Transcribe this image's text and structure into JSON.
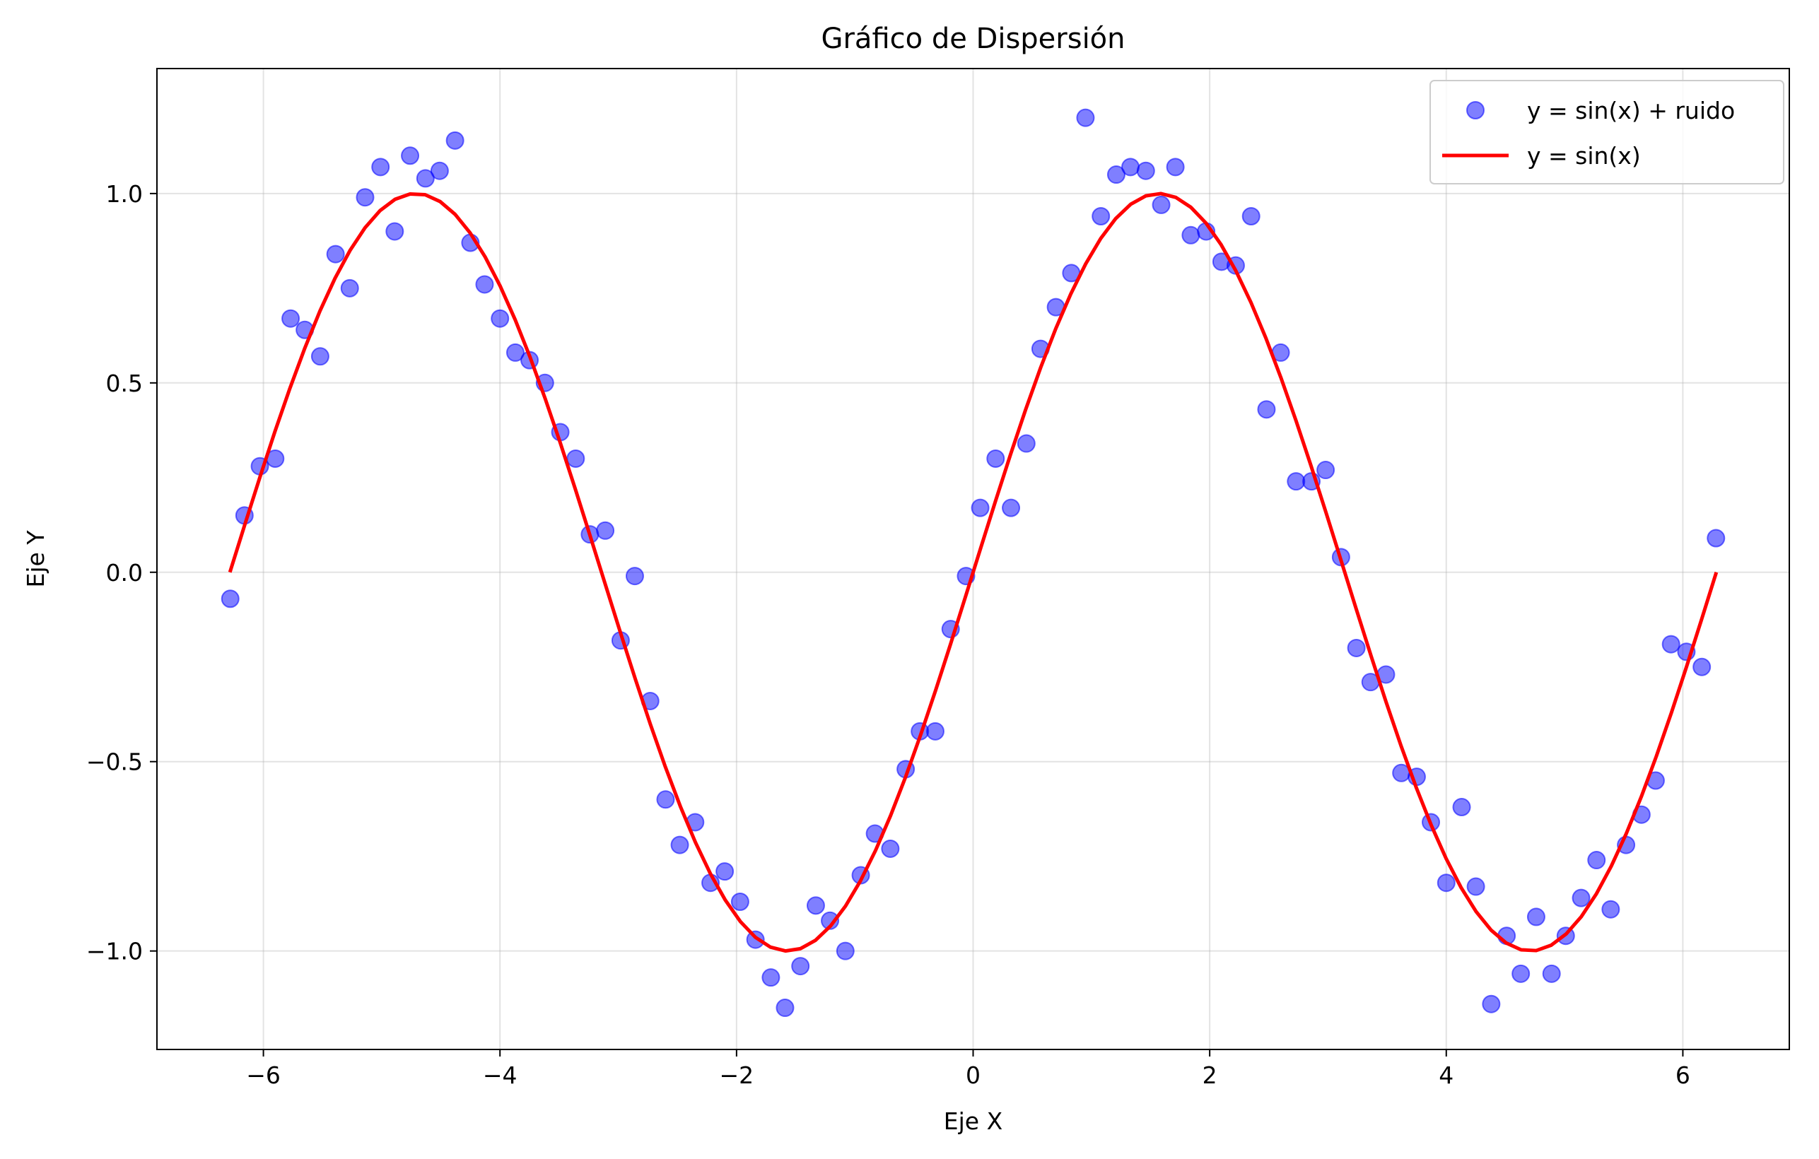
{
  "chart_data": {
    "type": "scatter",
    "title": "Gráfico de Dispersión",
    "xlabel": "Eje X",
    "ylabel": "Eje Y",
    "xlim": [
      -6.9,
      6.9
    ],
    "ylim": [
      -1.26,
      1.33
    ],
    "grid": true,
    "legend_position": "top-right",
    "x_ticks": [
      -6,
      -4,
      -2,
      0,
      2,
      4,
      6
    ],
    "x_tick_labels": [
      "−6",
      "−4",
      "−2",
      "0",
      "2",
      "4",
      "6"
    ],
    "y_ticks": [
      -1.0,
      -0.5,
      0.0,
      0.5,
      1.0
    ],
    "y_tick_labels": [
      "−1.0",
      "−0.5",
      "0.0",
      "0.5",
      "1.0"
    ],
    "series": [
      {
        "name": "y = sin(x) + ruido",
        "kind": "scatter",
        "color": "#0000ff",
        "points": [
          [
            -6.28,
            -0.07
          ],
          [
            -6.16,
            0.15
          ],
          [
            -6.03,
            0.28
          ],
          [
            -5.9,
            0.3
          ],
          [
            -5.77,
            0.67
          ],
          [
            -5.65,
            0.64
          ],
          [
            -5.52,
            0.57
          ],
          [
            -5.39,
            0.84
          ],
          [
            -5.27,
            0.75
          ],
          [
            -5.14,
            0.99
          ],
          [
            -5.01,
            1.07
          ],
          [
            -4.89,
            0.9
          ],
          [
            -4.76,
            1.1
          ],
          [
            -4.63,
            1.04
          ],
          [
            -4.51,
            1.06
          ],
          [
            -4.38,
            1.14
          ],
          [
            -4.25,
            0.87
          ],
          [
            -4.13,
            0.76
          ],
          [
            -4.0,
            0.67
          ],
          [
            -3.87,
            0.58
          ],
          [
            -3.75,
            0.56
          ],
          [
            -3.62,
            0.5
          ],
          [
            -3.49,
            0.37
          ],
          [
            -3.36,
            0.3
          ],
          [
            -3.24,
            0.1
          ],
          [
            -3.11,
            0.11
          ],
          [
            -2.98,
            -0.18
          ],
          [
            -2.86,
            -0.01
          ],
          [
            -2.73,
            -0.34
          ],
          [
            -2.6,
            -0.6
          ],
          [
            -2.48,
            -0.72
          ],
          [
            -2.35,
            -0.66
          ],
          [
            -2.22,
            -0.82
          ],
          [
            -2.1,
            -0.79
          ],
          [
            -1.97,
            -0.87
          ],
          [
            -1.84,
            -0.97
          ],
          [
            -1.71,
            -1.07
          ],
          [
            -1.59,
            -1.15
          ],
          [
            -1.46,
            -1.04
          ],
          [
            -1.33,
            -0.88
          ],
          [
            -1.21,
            -0.92
          ],
          [
            -1.08,
            -1.0
          ],
          [
            -0.95,
            -0.8
          ],
          [
            -0.83,
            -0.69
          ],
          [
            -0.7,
            -0.73
          ],
          [
            -0.57,
            -0.52
          ],
          [
            -0.45,
            -0.42
          ],
          [
            -0.32,
            -0.42
          ],
          [
            -0.19,
            -0.15
          ],
          [
            -0.06,
            -0.01
          ],
          [
            0.06,
            0.17
          ],
          [
            0.19,
            0.3
          ],
          [
            0.32,
            0.17
          ],
          [
            0.45,
            0.34
          ],
          [
            0.57,
            0.59
          ],
          [
            0.7,
            0.7
          ],
          [
            0.83,
            0.79
          ],
          [
            0.95,
            1.2
          ],
          [
            1.08,
            0.94
          ],
          [
            1.21,
            1.05
          ],
          [
            1.33,
            1.07
          ],
          [
            1.46,
            1.06
          ],
          [
            1.59,
            0.97
          ],
          [
            1.71,
            1.07
          ],
          [
            1.84,
            0.89
          ],
          [
            1.97,
            0.9
          ],
          [
            2.1,
            0.82
          ],
          [
            2.22,
            0.81
          ],
          [
            2.35,
            0.94
          ],
          [
            2.48,
            0.43
          ],
          [
            2.6,
            0.58
          ],
          [
            2.73,
            0.24
          ],
          [
            2.86,
            0.24
          ],
          [
            2.98,
            0.27
          ],
          [
            3.11,
            0.04
          ],
          [
            3.24,
            -0.2
          ],
          [
            3.36,
            -0.29
          ],
          [
            3.49,
            -0.27
          ],
          [
            3.62,
            -0.53
          ],
          [
            3.75,
            -0.54
          ],
          [
            3.87,
            -0.66
          ],
          [
            4.0,
            -0.82
          ],
          [
            4.13,
            -0.62
          ],
          [
            4.25,
            -0.83
          ],
          [
            4.38,
            -1.14
          ],
          [
            4.51,
            -0.96
          ],
          [
            4.63,
            -1.06
          ],
          [
            4.76,
            -0.91
          ],
          [
            4.89,
            -1.06
          ],
          [
            5.01,
            -0.96
          ],
          [
            5.14,
            -0.86
          ],
          [
            5.27,
            -0.76
          ],
          [
            5.39,
            -0.89
          ],
          [
            5.52,
            -0.72
          ],
          [
            5.65,
            -0.64
          ],
          [
            5.77,
            -0.55
          ],
          [
            5.9,
            -0.19
          ],
          [
            6.03,
            -0.21
          ],
          [
            6.16,
            -0.25
          ],
          [
            6.28,
            0.09
          ]
        ]
      },
      {
        "name": "y = sin(x)",
        "kind": "line",
        "color": "#ff0000",
        "function": "sin",
        "x_range": [
          -6.2832,
          6.2832
        ]
      }
    ]
  }
}
